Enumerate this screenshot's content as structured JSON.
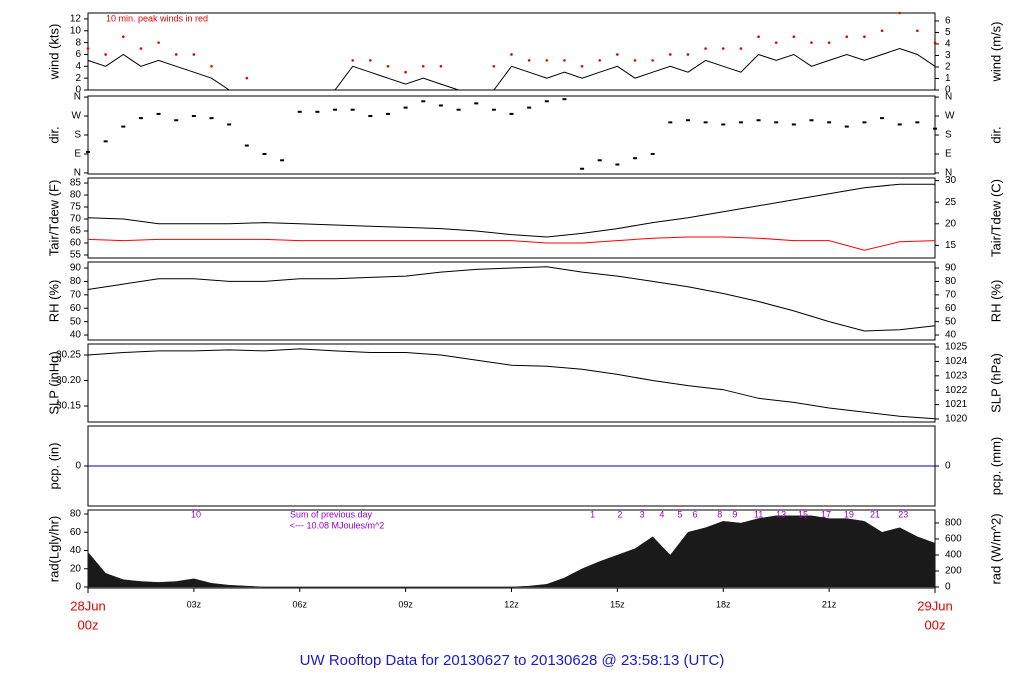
{
  "title": "UW Rooftop Data for 20130627  to  20130628 @ 23:58:13  (UTC)",
  "chart_data": [
    {
      "type": "line",
      "ylabel": "wind (kts)",
      "y2label": "wind (m/s)",
      "xlim": [
        0,
        24
      ],
      "x": [
        0,
        0.5,
        1,
        1.5,
        2,
        2.5,
        3,
        3.5,
        4,
        4.5,
        5,
        5.5,
        6,
        6.5,
        7,
        7.5,
        8,
        8.5,
        9,
        9.5,
        10,
        10.5,
        11,
        11.5,
        12,
        12.5,
        13,
        13.5,
        14,
        14.5,
        15,
        15.5,
        16,
        16.5,
        17,
        17.5,
        18,
        18.5,
        19,
        19.5,
        20,
        20.5,
        21,
        21.5,
        22,
        22.5,
        23,
        23.5,
        24
      ],
      "ylim": [
        0,
        13
      ],
      "yticks": [
        0,
        2,
        4,
        6,
        8,
        10,
        12
      ],
      "y2lim": [
        0,
        6.69
      ],
      "y2ticks": [
        0,
        1,
        2,
        3,
        4,
        5,
        6
      ],
      "series": [
        {
          "color": "#000000",
          "values": [
            5,
            4,
            6,
            4,
            5,
            4,
            3,
            2,
            0,
            0,
            0,
            0,
            0,
            0,
            0,
            4,
            3,
            2,
            1,
            2,
            1,
            0,
            0,
            0,
            4,
            3,
            2,
            3,
            2,
            3,
            4,
            2,
            3,
            4,
            3,
            5,
            4,
            3,
            6,
            5,
            6,
            4,
            5,
            6,
            5,
            6,
            7,
            6,
            4
          ]
        },
        {
          "color": "#e00000",
          "marker": "dot",
          "values": [
            7,
            6,
            9,
            7,
            8,
            6,
            6,
            4,
            null,
            2,
            null,
            null,
            null,
            null,
            null,
            5,
            5,
            4,
            3,
            4,
            4,
            null,
            null,
            4,
            6,
            5,
            5,
            5,
            4,
            5,
            6,
            5,
            5,
            6,
            6,
            7,
            7,
            7,
            9,
            8,
            9,
            8,
            8,
            9,
            9,
            10,
            13,
            10,
            8
          ]
        }
      ],
      "annotations": [
        {
          "text": "10 min. peak winds in red",
          "color": "#e00000"
        }
      ]
    },
    {
      "type": "scatter",
      "ylabel": "dir.",
      "y2label": "dir.",
      "xlim": [
        0,
        24
      ],
      "x": [
        0,
        0.5,
        1,
        1.5,
        2,
        2.5,
        3,
        3.5,
        4,
        4.5,
        5,
        5.5,
        6,
        6.5,
        7,
        7.5,
        8,
        8.5,
        9,
        9.5,
        10,
        10.5,
        11,
        11.5,
        12,
        12.5,
        13,
        13.5,
        14,
        14.5,
        15,
        15.5,
        16,
        16.5,
        17,
        17.5,
        18,
        18.5,
        19,
        19.5,
        20,
        20.5,
        21,
        21.5,
        22,
        22.5,
        23,
        23.5,
        24
      ],
      "ylim": [
        -5,
        365
      ],
      "yticks": [
        {
          "value": 0,
          "label": "N"
        },
        {
          "value": 90,
          "label": "E"
        },
        {
          "value": 180,
          "label": "S"
        },
        {
          "value": 270,
          "label": "W"
        },
        {
          "value": 360,
          "label": "N"
        }
      ],
      "y2lim": [
        -5,
        365
      ],
      "y2ticks": [
        {
          "value": 0,
          "label": "N"
        },
        {
          "value": 90,
          "label": "E"
        },
        {
          "value": 180,
          "label": "S"
        },
        {
          "value": 270,
          "label": "W"
        },
        {
          "value": 360,
          "label": "N"
        }
      ],
      "series": [
        {
          "color": "#000000",
          "values": [
            100,
            150,
            220,
            260,
            280,
            250,
            270,
            260,
            230,
            130,
            90,
            60,
            290,
            290,
            300,
            300,
            270,
            280,
            310,
            340,
            320,
            300,
            330,
            300,
            280,
            310,
            340,
            350,
            20,
            60,
            40,
            70,
            90,
            240,
            250,
            240,
            230,
            240,
            250,
            240,
            230,
            250,
            240,
            220,
            240,
            260,
            230,
            240,
            210
          ]
        }
      ]
    },
    {
      "type": "line",
      "ylabel": "Tair/Tdew (F)",
      "y2label": "Tair/Tdew (C)",
      "xlim": [
        0,
        24
      ],
      "x": [
        0,
        1,
        2,
        3,
        4,
        5,
        6,
        7,
        8,
        9,
        10,
        11,
        12,
        13,
        14,
        15,
        16,
        17,
        18,
        19,
        20,
        21,
        22,
        23,
        24
      ],
      "ylim": [
        53.75,
        87.1
      ],
      "yticks": [
        55,
        60,
        65,
        70,
        75,
        80,
        85
      ],
      "y2lim": [
        12.08,
        30.6
      ],
      "y2ticks": [
        15,
        20,
        25,
        30
      ],
      "series": [
        {
          "color": "#000000",
          "values": [
            70.5,
            70,
            68,
            68,
            68,
            68.5,
            68,
            67.5,
            67,
            66.5,
            66,
            65,
            63.5,
            62.5,
            64,
            66,
            68.5,
            70.5,
            73,
            75.5,
            78,
            80.5,
            83,
            84.5,
            84.5
          ]
        },
        {
          "color": "#ff0000",
          "values": [
            61.5,
            61,
            61.5,
            61.5,
            61.5,
            61.5,
            61,
            61,
            61,
            61,
            61,
            61,
            61,
            60,
            60,
            61,
            62,
            62.5,
            62.5,
            62,
            61,
            61,
            57,
            60.5,
            61
          ]
        }
      ]
    },
    {
      "type": "line",
      "ylabel": "RH (%)",
      "y2label": "RH (%)",
      "xlim": [
        0,
        24
      ],
      "x": [
        0,
        1,
        2,
        3,
        4,
        5,
        6,
        7,
        8,
        9,
        10,
        11,
        12,
        13,
        14,
        15,
        16,
        17,
        18,
        19,
        20,
        21,
        22,
        23,
        24
      ],
      "ylim": [
        36.3,
        94.5
      ],
      "yticks": [
        40,
        50,
        60,
        70,
        80,
        90
      ],
      "y2lim": [
        36.3,
        94.5
      ],
      "y2ticks": [
        40,
        50,
        60,
        70,
        80,
        90
      ],
      "series": [
        {
          "color": "#000000",
          "values": [
            74,
            78,
            82,
            82,
            80,
            80,
            82,
            82,
            83,
            84,
            87,
            89,
            90,
            91,
            87,
            84,
            80,
            76,
            71,
            65,
            58,
            50,
            43,
            44,
            47
          ]
        }
      ]
    },
    {
      "type": "line",
      "ylabel": "SLP (inHg)",
      "y2label": "SLP (hPa)",
      "xlim": [
        0,
        24
      ],
      "x": [
        0,
        1,
        2,
        3,
        4,
        5,
        6,
        7,
        8,
        9,
        10,
        11,
        12,
        13,
        14,
        15,
        16,
        17,
        18,
        19,
        20,
        21,
        22,
        23,
        24
      ],
      "ylim": [
        30.1186,
        30.2716
      ],
      "yticks": [
        30.15,
        {
          "value": 30.2,
          "label": "30.20"
        },
        30.25
      ],
      "y2lim": [
        1019.79,
        1025.21
      ],
      "y2ticks": [
        1020,
        1021,
        1022,
        1023,
        1024,
        1025
      ],
      "series": [
        {
          "color": "#000000",
          "values": [
            30.25,
            30.255,
            30.258,
            30.258,
            30.26,
            30.258,
            30.262,
            30.258,
            30.255,
            30.255,
            30.25,
            30.24,
            30.23,
            30.228,
            30.222,
            30.212,
            30.2,
            30.19,
            30.182,
            30.165,
            30.157,
            30.146,
            30.138,
            30.13,
            30.125
          ]
        }
      ]
    },
    {
      "type": "line",
      "ylabel": "pcp. (in)",
      "y2label": "pcp. (mm)",
      "xlim": [
        0,
        24
      ],
      "x": [
        0,
        1,
        2,
        3,
        4,
        5,
        6,
        7,
        8,
        9,
        10,
        11,
        12,
        13,
        14,
        15,
        16,
        17,
        18,
        19,
        20,
        21,
        22,
        23,
        24
      ],
      "ylim": [
        -1,
        1
      ],
      "yticks": [
        0
      ],
      "y2lim": [
        -25.4,
        25.4
      ],
      "y2ticks": [
        0
      ],
      "series": [
        {
          "color": "#0000cc",
          "values": [
            0,
            0,
            0,
            0,
            0,
            0,
            0,
            0,
            0,
            0,
            0,
            0,
            0,
            0,
            0,
            0,
            0,
            0,
            0,
            0,
            0,
            0,
            0,
            0,
            0
          ]
        }
      ]
    },
    {
      "type": "area",
      "ylabel": "rad(Lgly/hr)",
      "y2label": "rad (W/m^2)",
      "xlim": [
        0,
        24
      ],
      "x": [
        0,
        0.5,
        1,
        1.5,
        2,
        2.5,
        3,
        3.5,
        4,
        4.5,
        5,
        5.5,
        6,
        6.5,
        7,
        7.5,
        8,
        8.5,
        9,
        9.5,
        10,
        10.5,
        11,
        11.5,
        12,
        12.5,
        13,
        13.5,
        14,
        14.5,
        15,
        15.5,
        16,
        16.5,
        17,
        17.5,
        18,
        18.5,
        19,
        19.5,
        20,
        20.5,
        21,
        21.5,
        22,
        22.5,
        23,
        23.5,
        24
      ],
      "ylim": [
        -1.1,
        84.4
      ],
      "yticks": [
        0,
        20,
        40,
        60,
        80
      ],
      "y2lim": [
        -12.5,
        962
      ],
      "y2ticks": [
        0,
        200,
        400,
        600,
        800
      ],
      "series": [
        {
          "color": "#1a1a1a",
          "values": [
            38,
            15,
            8,
            6,
            5,
            6,
            9,
            4,
            2,
            1,
            0,
            0,
            0,
            0,
            0,
            0,
            0,
            0,
            0,
            0,
            0,
            0,
            0,
            0,
            0,
            1,
            3,
            10,
            20,
            28,
            35,
            42,
            55,
            35,
            60,
            65,
            72,
            70,
            75,
            78,
            78,
            78,
            75,
            75,
            72,
            60,
            65,
            55,
            48
          ]
        }
      ],
      "xticks": [
        {
          "value": 3,
          "label": "03z"
        },
        {
          "value": 6,
          "label": "06z"
        },
        {
          "value": 9,
          "label": "09z"
        },
        {
          "value": 12,
          "label": "12z"
        },
        {
          "value": 15,
          "label": "15z"
        },
        {
          "value": 18,
          "label": "18z"
        },
        {
          "value": 21,
          "label": "21z"
        }
      ],
      "start_label": [
        "28Jun",
        "00z"
      ],
      "end_label": [
        "29Jun",
        "00z"
      ],
      "note": [
        "Sum of previous day",
        "<--- 10.08 MJoules/m^2"
      ],
      "hour_labels": [
        {
          "x": 3.06,
          "label": "10"
        },
        {
          "x": 14.3,
          "label": "1"
        },
        {
          "x": 15.07,
          "label": "2"
        },
        {
          "x": 15.7,
          "label": "3"
        },
        {
          "x": 16.26,
          "label": "4"
        },
        {
          "x": 16.77,
          "label": "5"
        },
        {
          "x": 17.2,
          "label": "6"
        },
        {
          "x": 17.9,
          "label": "8"
        },
        {
          "x": 18.33,
          "label": "9"
        },
        {
          "x": 19.0,
          "label": "11"
        },
        {
          "x": 19.64,
          "label": "13"
        },
        {
          "x": 20.26,
          "label": "15"
        },
        {
          "x": 20.91,
          "label": "17"
        },
        {
          "x": 21.56,
          "label": "19"
        },
        {
          "x": 22.3,
          "label": "21"
        },
        {
          "x": 23.1,
          "label": "23"
        }
      ]
    }
  ]
}
